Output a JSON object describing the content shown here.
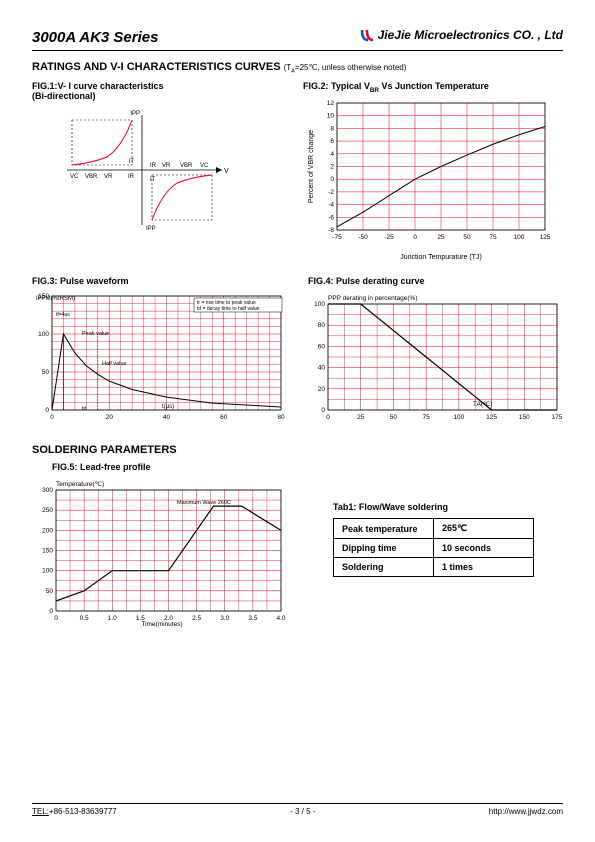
{
  "header": {
    "left": "3000A AK3 Series",
    "right": "JieJie Microelectronics CO. , Ltd",
    "logo_color_1": "#1a4db0",
    "logo_color_2": "#e6001f"
  },
  "section1": {
    "title": "RATINGS AND V-I CHARACTERISTICS CURVES",
    "condition": "(T",
    "condition_sub": "A",
    "condition_rest": "=25℃, unless otherwise noted)"
  },
  "fig1": {
    "title_line1": "FIG.1:V- I curve characteristics",
    "title_line2": "(Bi-directional)",
    "labels": {
      "vc": "VC",
      "vbr": "VBR",
      "vr": "VR",
      "ir": "IR",
      "it": "IT",
      "ipp": "IPP",
      "v": "V"
    },
    "curve_color": "#e6001f"
  },
  "fig2": {
    "title": "FIG.2: Typical VBR Vs Junction Temperature",
    "title_pre": "FIG.2: Typical V",
    "title_sub": "BR",
    "title_post": " Vs Junction Temperature",
    "grid_color": "#e6001f",
    "xlabel": "Junction Tempurature (TJ)",
    "xlabel_pre": "Junction Tempurature (T",
    "xlabel_sub": "J",
    "xlabel_post": ")",
    "ylabel": "Percent of VBR change",
    "ylabel_pre": "Percent of V",
    "ylabel_sub": "BR",
    "ylabel_post": " change",
    "xticks": [
      -75,
      -50,
      -25,
      0,
      25,
      50,
      75,
      100,
      125
    ],
    "yticks": [
      -8,
      -6,
      -4,
      -2,
      0,
      2,
      4,
      6,
      8,
      10,
      12
    ],
    "line": [
      [
        -75,
        -7.5
      ],
      [
        -50,
        -5.2
      ],
      [
        -25,
        -2.6
      ],
      [
        0,
        0
      ],
      [
        25,
        2
      ],
      [
        50,
        3.8
      ],
      [
        75,
        5.5
      ],
      [
        100,
        7
      ],
      [
        125,
        8.3
      ]
    ]
  },
  "fig3": {
    "title": "FIG.3: Pulse waveform",
    "grid_color": "#e6001f",
    "xlabel": "t(μs)",
    "ylabel": "IPPM(%IRSM)",
    "xticks": [
      0,
      20,
      40,
      60,
      80
    ],
    "yticks": [
      0,
      50,
      100,
      150
    ],
    "note_tr": "tr = rise time to peak value",
    "note_td": "td = decay time to half value",
    "note_peak": "Peak value",
    "note_half": "Half value",
    "note_tf4us": "tf=4us",
    "note_td_arrow": "td",
    "curve": [
      [
        0,
        0
      ],
      [
        4,
        100
      ],
      [
        8,
        75
      ],
      [
        12,
        58
      ],
      [
        16,
        47
      ],
      [
        20,
        38
      ],
      [
        28,
        27
      ],
      [
        40,
        17
      ],
      [
        56,
        9
      ],
      [
        80,
        4
      ]
    ]
  },
  "fig4": {
    "title": "FIG.4: Pulse derating curve",
    "grid_color": "#e6001f",
    "xlabel": "TA(℃)",
    "xlabel_pre": "T",
    "xlabel_sub": "A",
    "xlabel_post": "(℃)",
    "ylabel": "PPP derating in percentage(%)",
    "ylabel_pre": "P",
    "ylabel_sub": "PP",
    "ylabel_post": " derating in percentage(%)",
    "xticks": [
      0,
      25,
      50,
      75,
      100,
      125,
      150,
      175
    ],
    "yticks": [
      0,
      20,
      40,
      60,
      80,
      100
    ],
    "line": [
      [
        0,
        100
      ],
      [
        25,
        100
      ],
      [
        125,
        0
      ],
      [
        175,
        0
      ]
    ]
  },
  "section2": {
    "title": "SOLDERING PARAMETERS"
  },
  "fig5": {
    "title": "FIG.5: Lead-free profile",
    "grid_color": "#e6001f",
    "xlabel": "Time(minutes)",
    "ylabel": "Temperature(℃)",
    "xticks": [
      "0",
      "0.5",
      "1.0",
      "1.5",
      "2.0",
      "2.5",
      "3.0",
      "3.5",
      "4.0"
    ],
    "yticks": [
      0,
      50,
      100,
      150,
      200,
      250,
      300
    ],
    "note_max": "Maximum Wave 260C",
    "line": [
      [
        0,
        25
      ],
      [
        0.5,
        50
      ],
      [
        1.0,
        100
      ],
      [
        2.0,
        100
      ],
      [
        2.8,
        260
      ],
      [
        3.3,
        260
      ],
      [
        4.0,
        200
      ]
    ]
  },
  "tab1": {
    "title": "Tab1: Flow/Wave soldering",
    "rows": [
      [
        "Peak temperature",
        "265℃"
      ],
      [
        "Dipping time",
        "10 seconds"
      ],
      [
        "Soldering",
        "1 times"
      ]
    ]
  },
  "footer": {
    "tel_label": "TEL:",
    "tel": "+86-513-83639777",
    "page": "- 3  /  5 -",
    "url": "http://www.jjwdz.com"
  }
}
